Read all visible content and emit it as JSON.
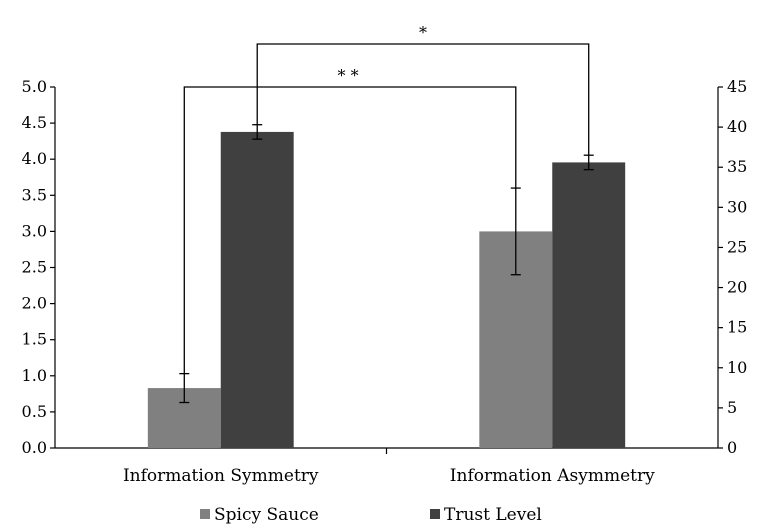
{
  "chart_data": {
    "type": "bar",
    "categories": [
      "Information Symmetry",
      "Information Asymmetry"
    ],
    "series": [
      {
        "name": "Spicy Sauce",
        "axis": "left",
        "color": "#808080",
        "values": [
          0.83,
          3.0
        ],
        "errors": [
          0.2,
          0.6
        ]
      },
      {
        "name": "Trust Level",
        "axis": "right",
        "color": "#404040",
        "values": [
          39.4,
          35.6
        ],
        "errors": [
          0.9,
          0.9
        ]
      }
    ],
    "y_left": {
      "ylim": [
        0,
        5
      ],
      "ticks": [
        "0.0",
        "0.5",
        "1.0",
        "1.5",
        "2.0",
        "2.5",
        "3.0",
        "3.5",
        "4.0",
        "4.5",
        "5.0"
      ]
    },
    "y_right": {
      "ylim": [
        0,
        45
      ],
      "ticks": [
        "0",
        "5",
        "10",
        "15",
        "20",
        "25",
        "30",
        "35",
        "40",
        "45"
      ]
    },
    "significance": [
      {
        "label": "* *",
        "between": "Spicy Sauce"
      },
      {
        "label": "*",
        "between": "Trust Level"
      }
    ],
    "legend": {
      "placement": "bottom",
      "entries": [
        "Spicy Sauce",
        "Trust Level"
      ]
    },
    "grid": false
  }
}
